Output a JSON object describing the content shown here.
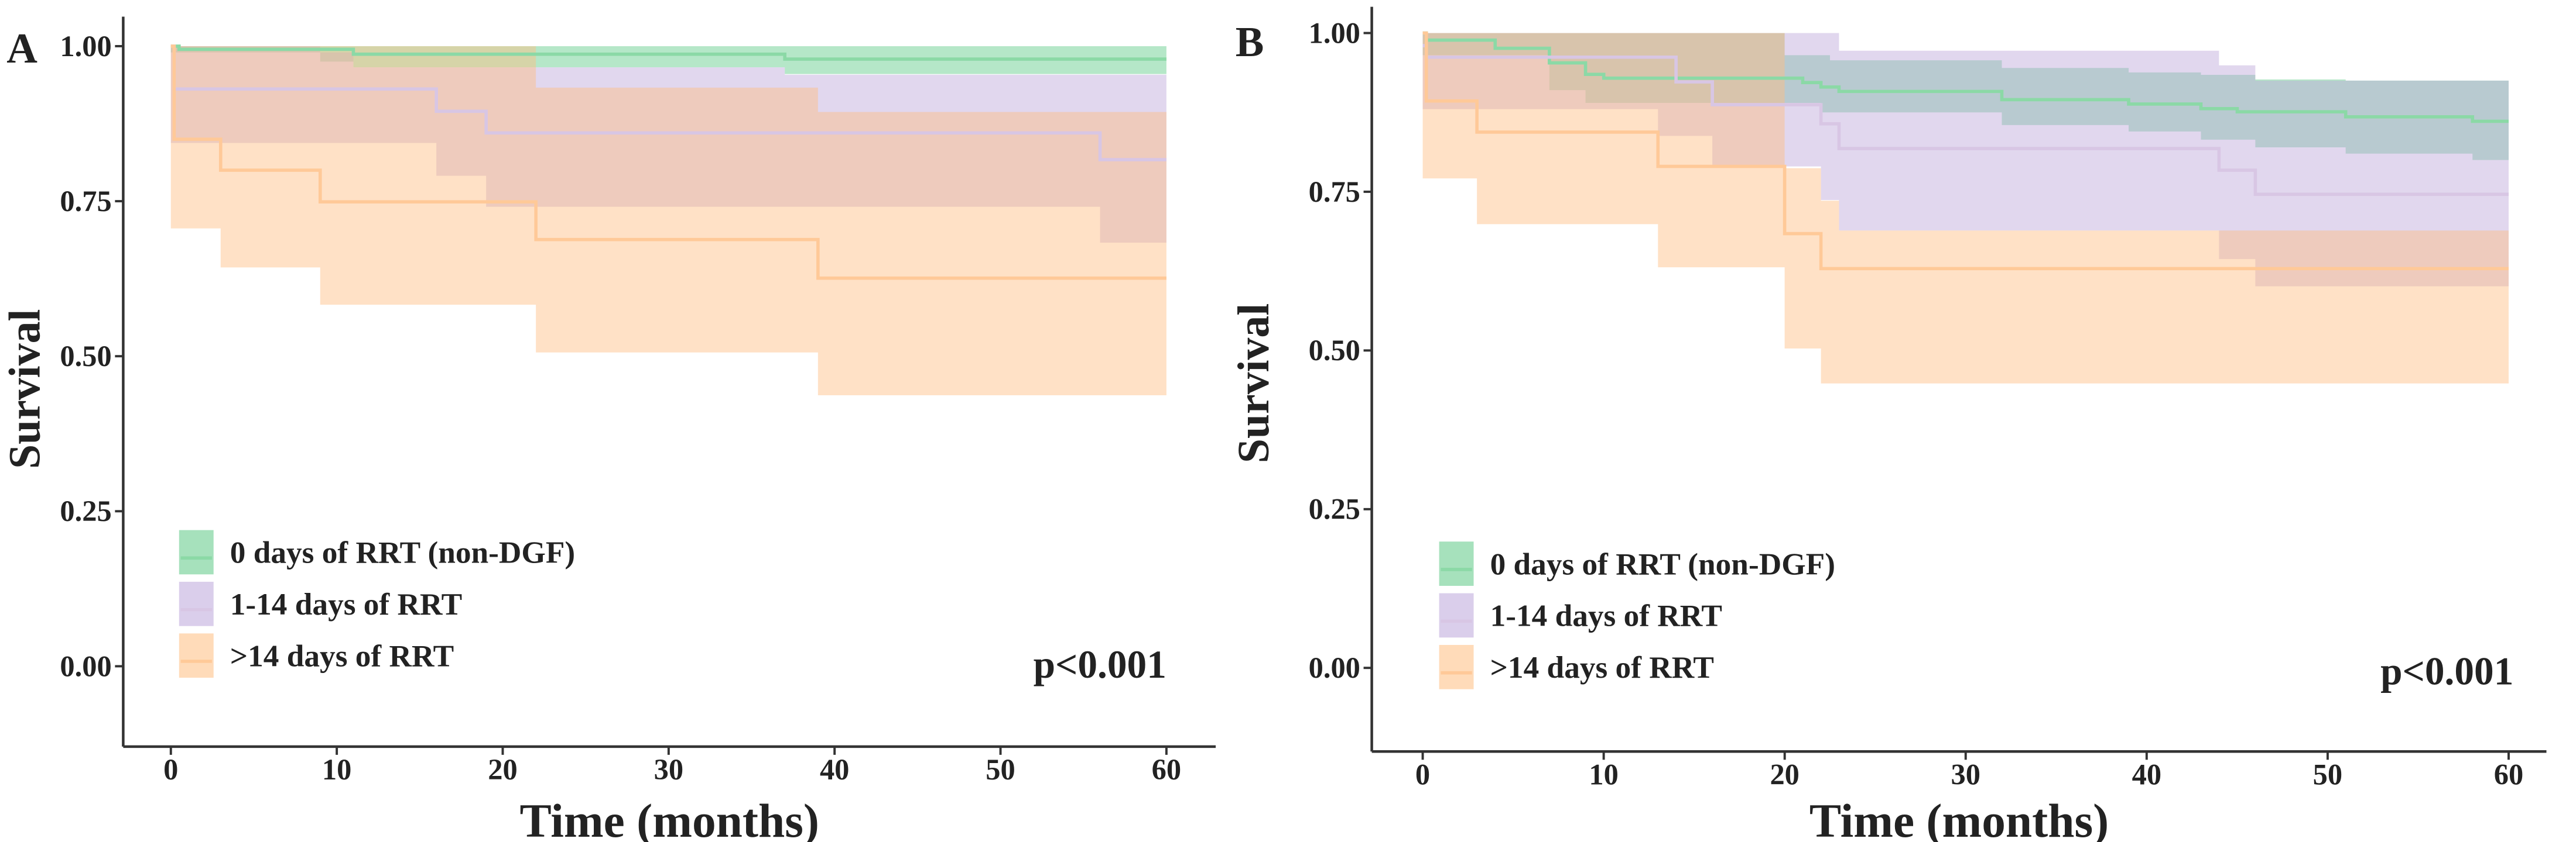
{
  "chart_data": [
    {
      "panel_label": "A",
      "type": "line",
      "subtype": "kaplan-meier",
      "xlabel": "Time (months)",
      "ylabel": "Survival",
      "xlim": [
        0,
        60
      ],
      "ylim": [
        0,
        1
      ],
      "xticks": [
        0,
        10,
        20,
        30,
        40,
        50,
        60
      ],
      "yticks": [
        "0.00",
        "0.25",
        "0.50",
        "0.75",
        "1.00"
      ],
      "legend_position": "bottom-left",
      "annotation": "p<0.001",
      "series": [
        {
          "name": "0 days of RRT (non-DGF)",
          "color": "#5cc985",
          "line_color": "#8bd9a6",
          "steps": [
            [
              0,
              1
            ],
            [
              0.5,
              0.995
            ],
            [
              11,
              0.987
            ],
            [
              37,
              0.979
            ]
          ],
          "upper": [
            [
              0,
              1
            ]
          ],
          "lower": [
            [
              0,
              0.99
            ],
            [
              9,
              0.975
            ],
            [
              11,
              0.966
            ],
            [
              37,
              0.955
            ]
          ]
        },
        {
          "name": "1-14 days of RRT",
          "color": "#bca6da",
          "line_color": "#d8c6e4",
          "steps": [
            [
              0,
              1
            ],
            [
              0.2,
              0.931
            ],
            [
              16,
              0.895
            ],
            [
              19,
              0.86
            ],
            [
              56,
              0.817
            ]
          ],
          "upper": [
            [
              0,
              1
            ],
            [
              9,
              0.99
            ],
            [
              11,
              0.966
            ],
            [
              37,
              0.954
            ]
          ],
          "lower": [
            [
              0,
              0.844
            ],
            [
              16,
              0.791
            ],
            [
              19,
              0.741
            ],
            [
              56,
              0.683
            ]
          ]
        },
        {
          "name": ">14 days of RRT",
          "color": "#ffbd80",
          "line_color": "#ffc998",
          "steps": [
            [
              0,
              1
            ],
            [
              0.2,
              0.85
            ],
            [
              3,
              0.8
            ],
            [
              9,
              0.749
            ],
            [
              22,
              0.688
            ],
            [
              39,
              0.626
            ]
          ],
          "upper": [
            [
              0,
              1
            ],
            [
              22,
              0.933
            ],
            [
              39,
              0.894
            ]
          ],
          "lower": [
            [
              0,
              0.706
            ],
            [
              3,
              0.643
            ],
            [
              9,
              0.583
            ],
            [
              22,
              0.506
            ],
            [
              39,
              0.437
            ]
          ]
        }
      ]
    },
    {
      "panel_label": "B",
      "type": "line",
      "subtype": "kaplan-meier",
      "xlabel": "Time (months)",
      "ylabel": "Survival",
      "xlim": [
        0,
        60
      ],
      "ylim": [
        0,
        1
      ],
      "xticks": [
        0,
        10,
        20,
        30,
        40,
        50,
        60
      ],
      "yticks": [
        "0.00",
        "0.25",
        "0.50",
        "0.75",
        "1.00"
      ],
      "legend_position": "bottom-left",
      "annotation": "p<0.001",
      "series": [
        {
          "name": "0 days of RRT (non-DGF)",
          "color": "#5cc985",
          "line_color": "#8bd9a6",
          "steps": [
            [
              0,
              1
            ],
            [
              0.2,
              0.989
            ],
            [
              4,
              0.976
            ],
            [
              7,
              0.953
            ],
            [
              9,
              0.935
            ],
            [
              10,
              0.929
            ],
            [
              21,
              0.922
            ],
            [
              22,
              0.915
            ],
            [
              23,
              0.908
            ],
            [
              32,
              0.895
            ],
            [
              39,
              0.888
            ],
            [
              43,
              0.881
            ],
            [
              45,
              0.876
            ],
            [
              51,
              0.868
            ],
            [
              58,
              0.861
            ]
          ],
          "upper": [
            [
              0,
              1
            ],
            [
              20,
              0.965
            ],
            [
              22.5,
              0.957
            ],
            [
              32,
              0.945
            ],
            [
              39,
              0.938
            ],
            [
              43,
              0.934
            ],
            [
              46,
              0.927
            ],
            [
              51,
              0.925
            ]
          ],
          "lower": [
            [
              0,
              0.965
            ],
            [
              7,
              0.91
            ],
            [
              9,
              0.89
            ],
            [
              22,
              0.875
            ],
            [
              32,
              0.855
            ],
            [
              39,
              0.845
            ],
            [
              43,
              0.832
            ],
            [
              46,
              0.82
            ],
            [
              51,
              0.81
            ],
            [
              58,
              0.8
            ]
          ]
        },
        {
          "name": "1-14 days of RRT",
          "color": "#bca6da",
          "line_color": "#d8c6e4",
          "steps": [
            [
              0,
              0.98
            ],
            [
              0.2,
              0.962
            ],
            [
              14,
              0.923
            ],
            [
              16,
              0.887
            ],
            [
              22,
              0.857
            ],
            [
              23,
              0.818
            ],
            [
              44,
              0.784
            ],
            [
              46,
              0.746
            ]
          ],
          "upper": [
            [
              0,
              1
            ],
            [
              23,
              0.972
            ],
            [
              44,
              0.949
            ],
            [
              46,
              0.925
            ]
          ],
          "lower": [
            [
              0,
              0.88
            ],
            [
              13,
              0.838
            ],
            [
              16,
              0.79
            ],
            [
              22,
              0.737
            ],
            [
              23,
              0.689
            ],
            [
              44,
              0.644
            ],
            [
              46,
              0.601
            ]
          ]
        },
        {
          "name": ">14 days of RRT",
          "color": "#ffbd80",
          "line_color": "#ffc998",
          "steps": [
            [
              0,
              1
            ],
            [
              0.2,
              0.893
            ],
            [
              3,
              0.844
            ],
            [
              13,
              0.79
            ],
            [
              20,
              0.684
            ],
            [
              22,
              0.629
            ]
          ],
          "upper": [
            [
              0,
              1
            ],
            [
              20,
              0.787
            ],
            [
              22,
              0.736
            ],
            [
              23,
              0.689
            ]
          ],
          "lower": [
            [
              0,
              0.771
            ],
            [
              3,
              0.699
            ],
            [
              13,
              0.631
            ],
            [
              20,
              0.503
            ],
            [
              22,
              0.448
            ]
          ]
        }
      ]
    }
  ]
}
